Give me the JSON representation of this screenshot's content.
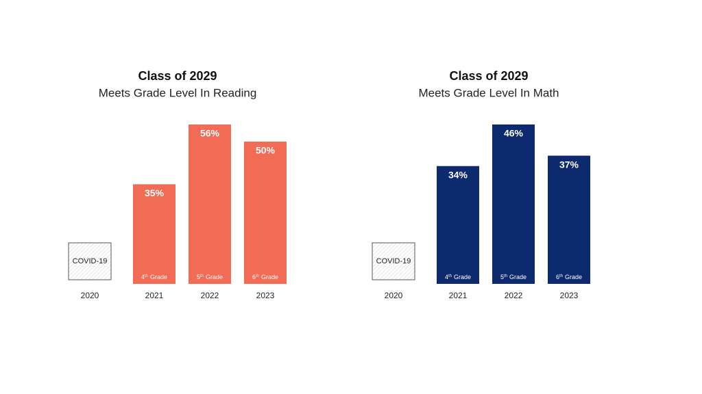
{
  "chart_data": [
    {
      "type": "bar",
      "title": "Class of 2029",
      "subtitle": "Meets Grade Level In Reading",
      "categories": [
        "2020",
        "2021",
        "2022",
        "2023"
      ],
      "values": [
        null,
        35,
        56,
        50
      ],
      "value_labels": [
        null,
        "35%",
        "56%",
        "50%"
      ],
      "grade_labels": [
        null,
        {
          "ordinal": "4",
          "suffix": "th",
          "word": "Grade"
        },
        {
          "ordinal": "5",
          "suffix": "th",
          "word": "Grade"
        },
        {
          "ordinal": "6",
          "suffix": "th",
          "word": "Grade"
        }
      ],
      "placeholder_label": "COVID-19",
      "color": "#f26b55"
    },
    {
      "type": "bar",
      "title": "Class of 2029",
      "subtitle": "Meets Grade Level In Math",
      "categories": [
        "2020",
        "2021",
        "2022",
        "2023"
      ],
      "values": [
        null,
        34,
        46,
        37
      ],
      "value_labels": [
        null,
        "34%",
        "46%",
        "37%"
      ],
      "grade_labels": [
        null,
        {
          "ordinal": "4",
          "suffix": "th",
          "word": "Grade"
        },
        {
          "ordinal": "5",
          "suffix": "th",
          "word": "Grade"
        },
        {
          "ordinal": "6",
          "suffix": "th",
          "word": "Grade"
        }
      ],
      "placeholder_label": "COVID-19",
      "color": "#0d2a6f"
    }
  ]
}
